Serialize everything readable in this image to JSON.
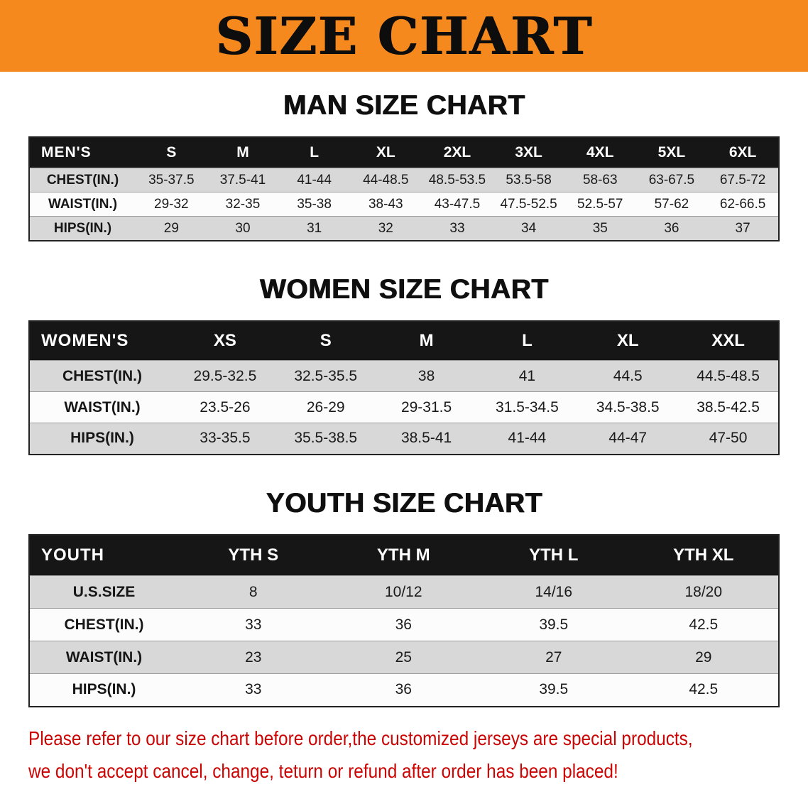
{
  "banner": {
    "title": "SIZE CHART",
    "bg_color": "#f6891e",
    "text_color": "#0d0d0d"
  },
  "sections": [
    {
      "id": "mens",
      "heading": "MAN SIZE CHART",
      "header": [
        "MEN'S",
        "S",
        "M",
        "L",
        "XL",
        "2XL",
        "3XL",
        "4XL",
        "5XL",
        "6XL"
      ],
      "rows": [
        {
          "label": "CHEST(IN.)",
          "values": [
            "35-37.5",
            "37.5-41",
            "41-44",
            "44-48.5",
            "48.5-53.5",
            "53.5-58",
            "58-63",
            "63-67.5",
            "67.5-72"
          ]
        },
        {
          "label": "WAIST(IN.)",
          "values": [
            "29-32",
            "32-35",
            "35-38",
            "38-43",
            "43-47.5",
            "47.5-52.5",
            "52.5-57",
            "57-62",
            "62-66.5"
          ]
        },
        {
          "label": "HIPS(IN.)",
          "values": [
            "29",
            "30",
            "31",
            "32",
            "33",
            "34",
            "35",
            "36",
            "37"
          ]
        }
      ]
    },
    {
      "id": "womens",
      "heading": "WOMEN SIZE CHART",
      "header": [
        "WOMEN'S",
        "XS",
        "S",
        "M",
        "L",
        "XL",
        "XXL"
      ],
      "rows": [
        {
          "label": "CHEST(IN.)",
          "values": [
            "29.5-32.5",
            "32.5-35.5",
            "38",
            "41",
            "44.5",
            "44.5-48.5"
          ]
        },
        {
          "label": "WAIST(IN.)",
          "values": [
            "23.5-26",
            "26-29",
            "29-31.5",
            "31.5-34.5",
            "34.5-38.5",
            "38.5-42.5"
          ]
        },
        {
          "label": "HIPS(IN.)",
          "values": [
            "33-35.5",
            "35.5-38.5",
            "38.5-41",
            "41-44",
            "44-47",
            "47-50"
          ]
        }
      ]
    },
    {
      "id": "youth",
      "heading": "YOUTH SIZE CHART",
      "header": [
        "YOUTH",
        "YTH S",
        "YTH M",
        "YTH L",
        "YTH XL"
      ],
      "rows": [
        {
          "label": "U.S.SIZE",
          "values": [
            "8",
            "10/12",
            "14/16",
            "18/20"
          ]
        },
        {
          "label": "CHEST(IN.)",
          "values": [
            "33",
            "36",
            "39.5",
            "42.5"
          ]
        },
        {
          "label": "WAIST(IN.)",
          "values": [
            "23",
            "25",
            "27",
            "29"
          ]
        },
        {
          "label": "HIPS(IN.)",
          "values": [
            "33",
            "36",
            "39.5",
            "42.5"
          ]
        }
      ]
    }
  ],
  "footer": {
    "line1": "Please refer to our size chart before order,the customized jerseys are special products,",
    "line2": "we don't accept cancel, change, teturn or refund after order has been placed!",
    "text_color": "#cb0404"
  },
  "colors": {
    "banner_orange": "#f6891e",
    "table_header_black": "#161616",
    "row_shade_gray": "#d8d8d8",
    "notice_red": "#cb0404"
  }
}
